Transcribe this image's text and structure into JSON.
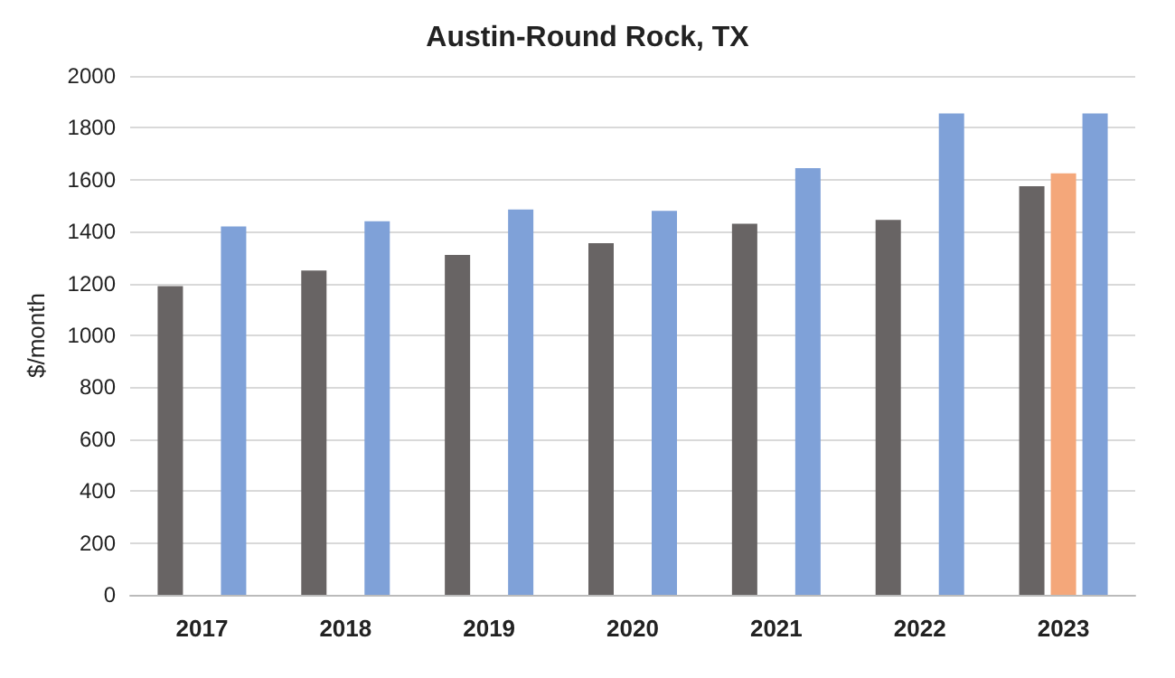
{
  "chart_data": {
    "type": "bar",
    "title": "Austin-Round Rock, TX",
    "ylabel": "$/month",
    "categories": [
      "2017",
      "2018",
      "2019",
      "2020",
      "2021",
      "2022",
      "2023"
    ],
    "series": [
      {
        "color": "#686464",
        "values": [
          1190,
          1250,
          1310,
          1355,
          1430,
          1445,
          1575
        ]
      },
      {
        "color": "#f4a77a",
        "values": [
          null,
          null,
          null,
          null,
          null,
          null,
          1625
        ]
      },
      {
        "color": "#7fa1d8",
        "values": [
          1420,
          1440,
          1485,
          1480,
          1645,
          1855,
          1855
        ]
      }
    ],
    "ylim": [
      0,
      2000
    ],
    "yticks": [
      0,
      200,
      400,
      600,
      800,
      1000,
      1200,
      1400,
      1600,
      1800,
      2000
    ],
    "grid": "y"
  }
}
